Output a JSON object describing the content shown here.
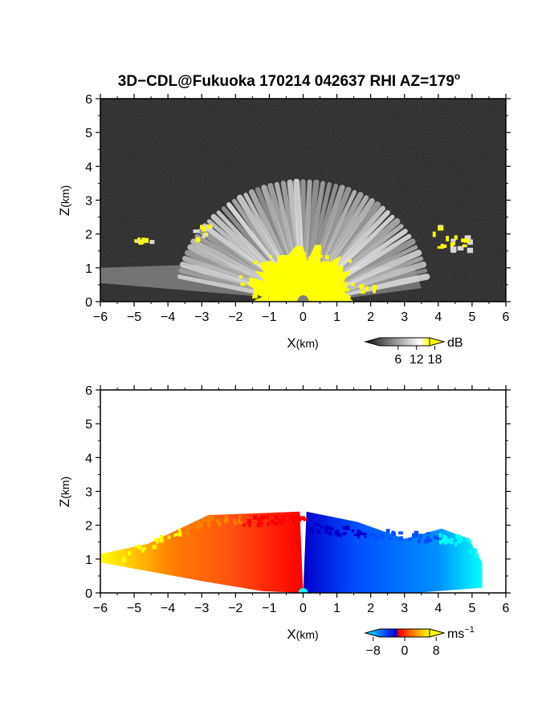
{
  "page": {
    "title": "3D−CDL@Fukuoka 170214 042637 RHI AZ=179",
    "title_sup": "o"
  },
  "chart_data": [
    {
      "type": "heatmap",
      "name": "reflectivity-rhi",
      "xlabel_main": "X",
      "xlabel_unit": "(km)",
      "ylabel_main": "Z",
      "ylabel_unit": "(km)",
      "xlim": [
        -6,
        6
      ],
      "ylim": [
        0,
        6
      ],
      "xticks": [
        "−6",
        "−5",
        "−4",
        "−3",
        "−2",
        "−1",
        "0",
        "1",
        "2",
        "3",
        "4",
        "5",
        "6"
      ],
      "yticks": [
        "0",
        "1",
        "2",
        "3",
        "4",
        "5",
        "6"
      ],
      "background_color": "#1f1f1f",
      "highlight_color": "#ffff00",
      "colorbar": {
        "unit": "dB",
        "ticks": [
          "6",
          "12",
          "18"
        ],
        "range": [
          0,
          21
        ],
        "colors": [
          "#111111",
          "#ffffff",
          "#ffff00"
        ]
      },
      "features": {
        "cone_top_height_km": 2.4,
        "cone_half_width_km": 3.4,
        "low_layer_extent_km": [
          -6,
          3.3
        ],
        "low_layer_top_km": 1.1,
        "echo_clusters_km": [
          [
            4.1,
            1.4,
            2.3
          ],
          [
            4.6,
            1.5,
            2.0
          ],
          [
            -3.1,
            1.9,
            2.3
          ],
          [
            -4.7,
            1.8,
            1.9
          ]
        ]
      }
    },
    {
      "type": "heatmap",
      "name": "doppler-velocity-rhi",
      "xlabel_main": "X",
      "xlabel_unit": "(km)",
      "ylabel_main": "Z",
      "ylabel_unit": "(km)",
      "xlim": [
        -6,
        6
      ],
      "ylim": [
        0,
        6
      ],
      "xticks": [
        "−6",
        "−5",
        "−4",
        "−3",
        "−2",
        "−1",
        "0",
        "1",
        "2",
        "3",
        "4",
        "5",
        "6"
      ],
      "yticks": [
        "0",
        "1",
        "2",
        "3",
        "4",
        "5",
        "6"
      ],
      "colorbar": {
        "unit": "ms",
        "unit_sup": "−1",
        "ticks": [
          "−8",
          "0",
          "8"
        ],
        "range": [
          -10,
          10
        ],
        "colors": [
          "#00ffff",
          "#0050ff",
          "#0000cc",
          "#ff0000",
          "#ff8000",
          "#ffff00"
        ]
      },
      "features": {
        "echo_top_km": 2.4,
        "left_extent_km": -6,
        "right_extent_km": 5.3,
        "negative_side": "x > 0",
        "positive_side": "x < 0",
        "max_abs_velocity_ms": 10
      }
    }
  ]
}
